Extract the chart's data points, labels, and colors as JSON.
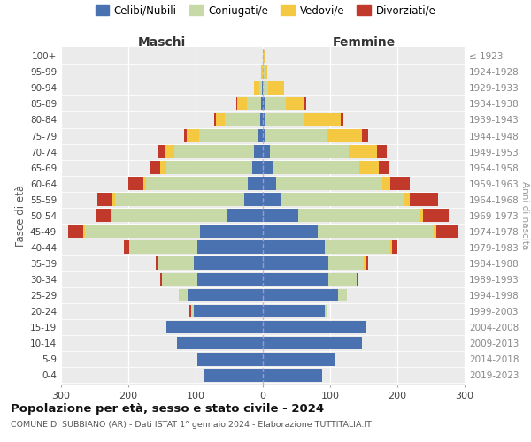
{
  "age_groups": [
    "0-4",
    "5-9",
    "10-14",
    "15-19",
    "20-24",
    "25-29",
    "30-34",
    "35-39",
    "40-44",
    "45-49",
    "50-54",
    "55-59",
    "60-64",
    "65-69",
    "70-74",
    "75-79",
    "80-84",
    "85-89",
    "90-94",
    "95-99",
    "100+"
  ],
  "birth_years": [
    "2019-2023",
    "2014-2018",
    "2009-2013",
    "2004-2008",
    "1999-2003",
    "1994-1998",
    "1989-1993",
    "1984-1988",
    "1979-1983",
    "1974-1978",
    "1969-1973",
    "1964-1968",
    "1959-1963",
    "1954-1958",
    "1949-1953",
    "1944-1948",
    "1939-1943",
    "1934-1938",
    "1929-1933",
    "1924-1928",
    "≤ 1923"
  ],
  "colors": {
    "celibi": "#4a72b0",
    "coniugati": "#c8d9a8",
    "vedovi": "#f5c842",
    "divorziati": "#c0392b"
  },
  "maschi": {
    "celibi": [
      88,
      98,
      128,
      143,
      103,
      112,
      98,
      103,
      97,
      93,
      52,
      28,
      22,
      16,
      13,
      7,
      4,
      2,
      1,
      0,
      0
    ],
    "coniugati": [
      0,
      0,
      0,
      0,
      4,
      13,
      52,
      52,
      102,
      172,
      172,
      192,
      152,
      128,
      118,
      88,
      52,
      22,
      4,
      0,
      0
    ],
    "vedovi": [
      0,
      0,
      0,
      0,
      0,
      0,
      0,
      0,
      0,
      2,
      2,
      4,
      4,
      8,
      14,
      18,
      14,
      14,
      8,
      2,
      0
    ],
    "divorziati": [
      0,
      0,
      0,
      0,
      2,
      0,
      2,
      4,
      8,
      22,
      22,
      22,
      22,
      16,
      10,
      4,
      2,
      2,
      0,
      0,
      0
    ]
  },
  "femmine": {
    "celibi": [
      88,
      108,
      148,
      153,
      92,
      112,
      98,
      98,
      92,
      82,
      52,
      28,
      20,
      16,
      10,
      4,
      4,
      2,
      0,
      0,
      0
    ],
    "coniugati": [
      0,
      0,
      0,
      0,
      4,
      13,
      42,
      52,
      98,
      172,
      182,
      182,
      158,
      128,
      118,
      92,
      58,
      32,
      8,
      2,
      0
    ],
    "vedovi": [
      0,
      0,
      0,
      0,
      0,
      0,
      0,
      2,
      2,
      4,
      4,
      8,
      12,
      28,
      42,
      52,
      54,
      28,
      24,
      4,
      2
    ],
    "divorziati": [
      0,
      0,
      0,
      0,
      0,
      0,
      2,
      4,
      8,
      32,
      38,
      42,
      28,
      16,
      14,
      8,
      4,
      2,
      0,
      0,
      0
    ]
  },
  "title": "Popolazione per età, sesso e stato civile - 2024",
  "subtitle": "COMUNE DI SUBBIANO (AR) - Dati ISTAT 1° gennaio 2024 - Elaborazione TUTTITALIA.IT",
  "xlabel_left": "Maschi",
  "xlabel_right": "Femmine",
  "ylabel_left": "Fasce di età",
  "ylabel_right": "Anni di nascita",
  "xlim": 300,
  "legend_labels": [
    "Celibi/Nubili",
    "Coniugati/e",
    "Vedovi/e",
    "Divorziati/e"
  ]
}
